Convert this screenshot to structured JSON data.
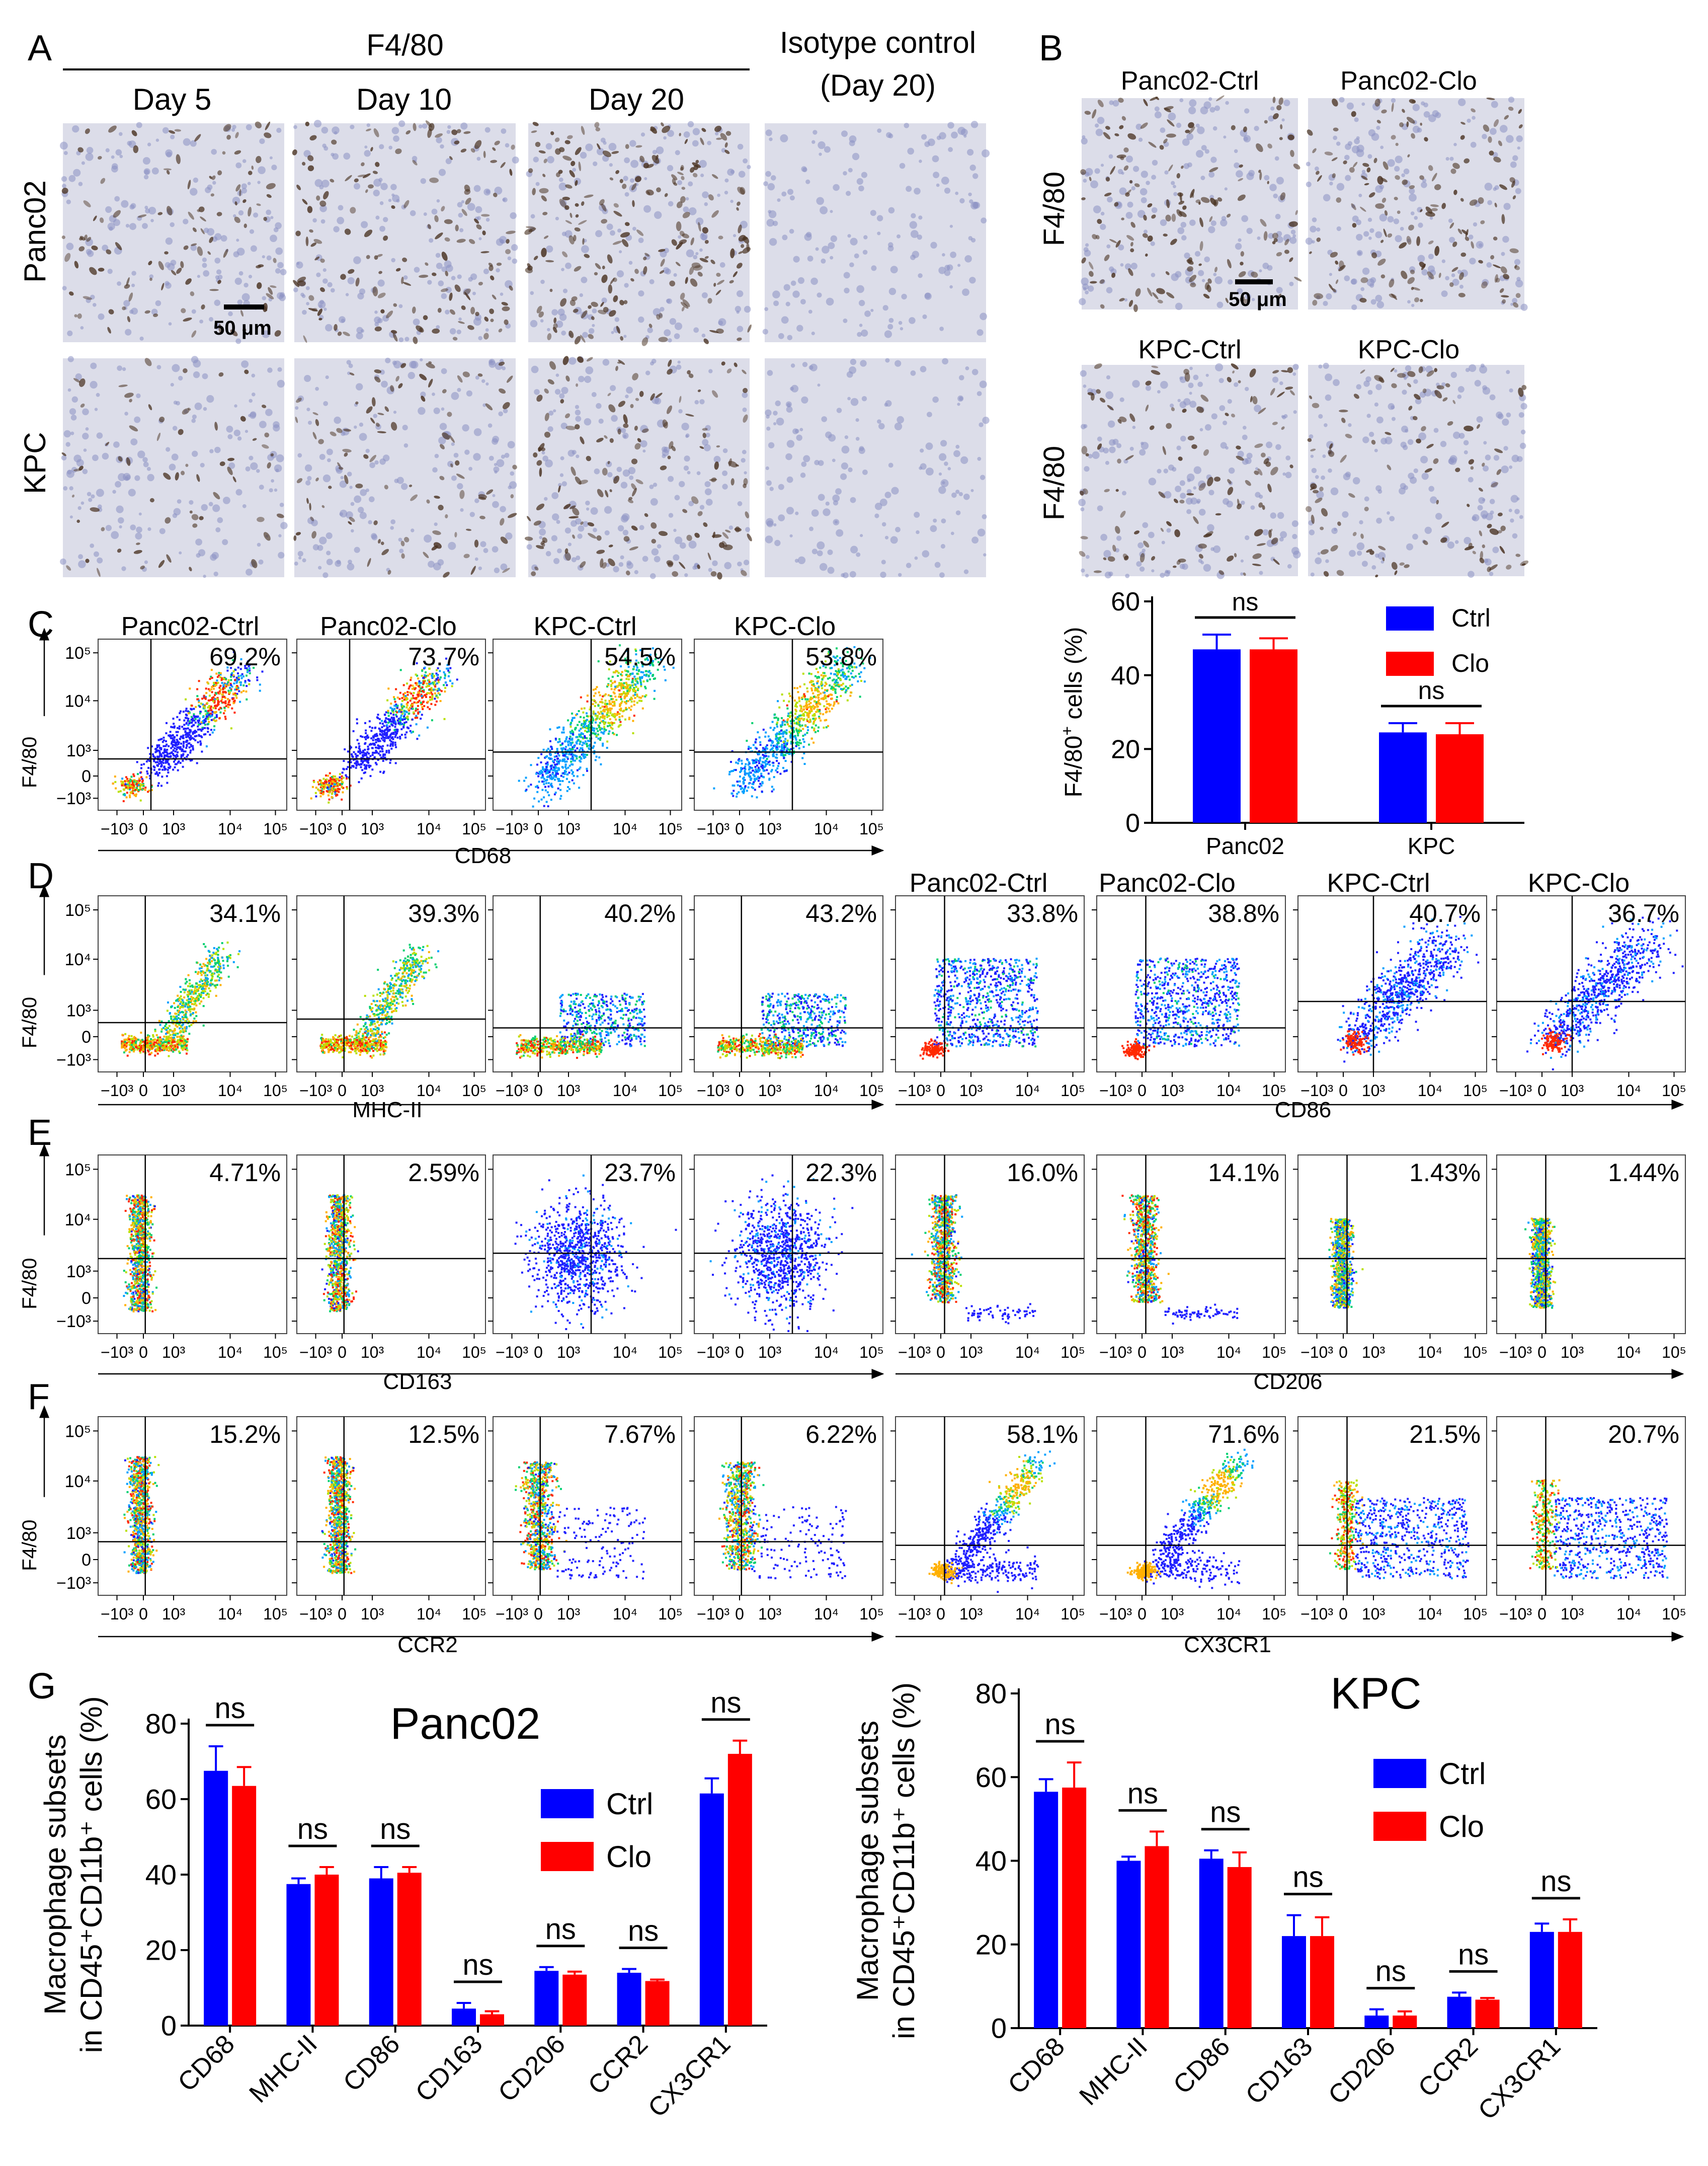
{
  "panel_letters": [
    "A",
    "B",
    "C",
    "D",
    "E",
    "F",
    "G"
  ],
  "panelA": {
    "group_title": "F4/80",
    "days": [
      "Day 5",
      "Day 10",
      "Day 20"
    ],
    "isotype_title_1": "Isotype control",
    "isotype_title_2": "(Day 20)",
    "row_labels": [
      "Panc02",
      "KPC"
    ],
    "scale_bar": "50 μm",
    "stain_intensity": {
      "Panc02": [
        0.45,
        0.6,
        0.85,
        0.0
      ],
      "KPC": [
        0.25,
        0.4,
        0.6,
        0.0
      ]
    }
  },
  "panelB": {
    "ihc_titles_row1": [
      "Panc02-Ctrl",
      "Panc02-Clo"
    ],
    "ihc_titles_row2": [
      "KPC-Ctrl",
      "KPC-Clo"
    ],
    "row_label": "F4/80",
    "scale_bar": "50 μm",
    "stain_intensity": [
      0.6,
      0.6,
      0.45,
      0.4
    ]
  },
  "flow": {
    "axis_y_name": "F4/80",
    "y_ticks": [
      "10⁵",
      "10⁴",
      "10³",
      "0",
      "−10³"
    ],
    "x_ticks": [
      "−10³",
      "0",
      "10³",
      "10⁴",
      "10⁵"
    ],
    "panelC": {
      "titles": [
        "Panc02-Ctrl",
        "Panc02-Clo",
        "KPC-Ctrl",
        "KPC-Clo"
      ],
      "percents": [
        "69.2%",
        "73.7%",
        "54.5%",
        "53.8%"
      ],
      "x_axis": "CD68"
    },
    "panelD": {
      "titles_right": [
        "Panc02-Ctrl",
        "Panc02-Clo",
        "KPC-Ctrl",
        "KPC-Clo"
      ],
      "percents": [
        "34.1%",
        "39.3%",
        "40.2%",
        "43.2%",
        "33.8%",
        "38.8%",
        "40.7%",
        "36.7%"
      ],
      "x_axis_left": "MHC-II",
      "x_axis_right": "CD86"
    },
    "panelE": {
      "percents": [
        "4.71%",
        "2.59%",
        "23.7%",
        "22.3%",
        "16.0%",
        "14.1%",
        "1.43%",
        "1.44%"
      ],
      "x_axis_left": "CD163",
      "x_axis_right": "CD206"
    },
    "panelF": {
      "percents": [
        "15.2%",
        "12.5%",
        "7.67%",
        "6.22%",
        "58.1%",
        "71.6%",
        "21.5%",
        "20.7%"
      ],
      "x_axis_left": "CCR2",
      "x_axis_right": "CX3CR1"
    }
  },
  "colors": {
    "ctrl": "#0000ff",
    "clo": "#ff0000"
  },
  "chart_data": [
    {
      "type": "bar",
      "panel": "B",
      "title": "",
      "ylabel": "F4/80⁺ cells (%)",
      "ylabel_main": "F4/80",
      "ylabel_sup": "+",
      "ylabel_tail": " cells (%)",
      "ylim": [
        0,
        60
      ],
      "yticks": [
        0,
        20,
        40,
        60
      ],
      "categories": [
        "Panc02",
        "KPC"
      ],
      "series": [
        {
          "name": "Ctrl",
          "values": [
            47,
            24.5
          ],
          "errors": [
            4,
            2.5
          ]
        },
        {
          "name": "Clo",
          "values": [
            47,
            24
          ],
          "errors": [
            3,
            3
          ]
        }
      ],
      "significance": [
        "ns",
        "ns"
      ]
    },
    {
      "type": "bar",
      "panel": "G-left",
      "title": "Panc02",
      "ylabel_line1": "Macrophage subsets",
      "ylabel_line2": "in CD45⁺CD11b⁺ cells (%)",
      "ylim": [
        0,
        80
      ],
      "yticks": [
        0,
        20,
        40,
        60,
        80
      ],
      "categories": [
        "CD68",
        "MHC-II",
        "CD86",
        "CD163",
        "CD206",
        "CCR2",
        "CX3CR1"
      ],
      "series": [
        {
          "name": "Ctrl",
          "values": [
            67.5,
            37.5,
            39,
            4.5,
            14.5,
            14,
            61.5
          ],
          "errors": [
            6.5,
            1.5,
            3,
            1.5,
            1,
            1,
            4
          ]
        },
        {
          "name": "Clo",
          "values": [
            63.5,
            40,
            40.5,
            3,
            13.5,
            11.8,
            72
          ],
          "errors": [
            5,
            2,
            1.5,
            0.8,
            0.8,
            0.4,
            3.5
          ]
        }
      ],
      "significance": [
        "ns",
        "ns",
        "ns",
        "ns",
        "ns",
        "ns",
        "ns"
      ]
    },
    {
      "type": "bar",
      "panel": "G-right",
      "title": "KPC",
      "ylabel_line1": "Macrophage subsets",
      "ylabel_line2": "in CD45⁺CD11b⁺ cells (%)",
      "ylim": [
        0,
        80
      ],
      "yticks": [
        0,
        20,
        40,
        60,
        80
      ],
      "categories": [
        "CD68",
        "MHC-II",
        "CD86",
        "CD163",
        "CD206",
        "CCR2",
        "CX3CR1"
      ],
      "series": [
        {
          "name": "Ctrl",
          "values": [
            56.5,
            40,
            40.5,
            22,
            3,
            7.5,
            23
          ],
          "errors": [
            3,
            1,
            2,
            5,
            1.5,
            1,
            2
          ]
        },
        {
          "name": "Clo",
          "values": [
            57.5,
            43.5,
            38.5,
            22,
            3,
            6.8,
            23
          ],
          "errors": [
            6,
            3.5,
            3.5,
            4.5,
            1,
            0.4,
            3
          ]
        }
      ],
      "significance": [
        "ns",
        "ns",
        "ns",
        "ns",
        "ns",
        "ns",
        "ns"
      ]
    }
  ]
}
